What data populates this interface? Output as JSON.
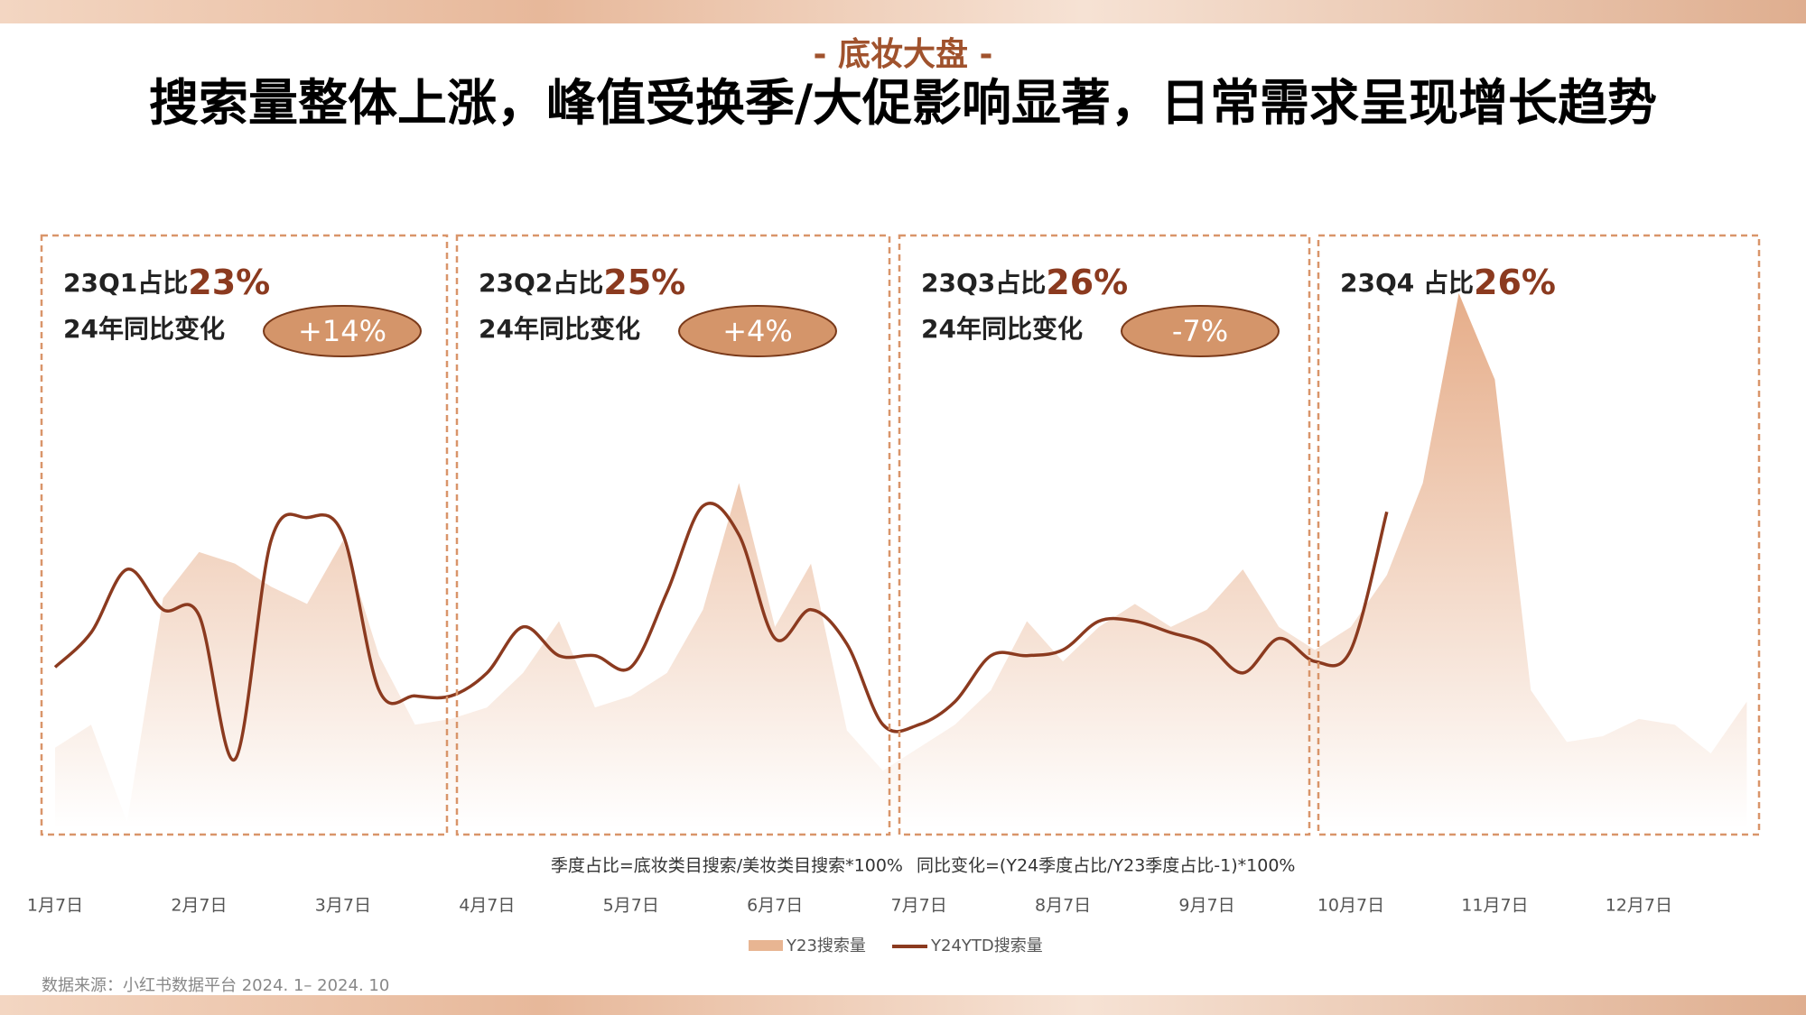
{
  "header": {
    "subtitle": "- 底妆大盘 -",
    "title": "搜索量整体上涨，峰值受换季/大促影响显著，日常需求呈现增长趋势"
  },
  "chart_data": {
    "type": "area-line",
    "categories": [
      "1月7日",
      null,
      null,
      null,
      "2月7日",
      null,
      null,
      null,
      "3月7日",
      null,
      null,
      null,
      "4月7日",
      null,
      null,
      null,
      "5月7日",
      null,
      null,
      null,
      "6月7日",
      null,
      null,
      null,
      "7月7日",
      null,
      null,
      null,
      "8月7日",
      null,
      null,
      null,
      "9月7日",
      null,
      null,
      null,
      "10月7日",
      null,
      null,
      null,
      "11月7日",
      null,
      null,
      null,
      "12月7日",
      null,
      null,
      null
    ],
    "series": [
      {
        "name": "Y23搜索量",
        "color": "#e8b592",
        "values": [
          14,
          18,
          1,
          40,
          48,
          46,
          42,
          39,
          50,
          30,
          18,
          19,
          21,
          27,
          36,
          21,
          23,
          27,
          38,
          60,
          35,
          46,
          17,
          10,
          14,
          18,
          24,
          36,
          29,
          35,
          39,
          35,
          38,
          45,
          35,
          31,
          35,
          44,
          60,
          93,
          78,
          24,
          15,
          16,
          19,
          18,
          13,
          22
        ]
      },
      {
        "name": "Y24YTD搜索量",
        "color": "#8b3a1f",
        "values": [
          28,
          34,
          45,
          38,
          37,
          12,
          50,
          54,
          51,
          24,
          23,
          23,
          27,
          35,
          30,
          30,
          28,
          41,
          56,
          51,
          33,
          38,
          32,
          18,
          18,
          22,
          30,
          30,
          31,
          36,
          36,
          34,
          32,
          27,
          33,
          29,
          31,
          55,
          null,
          null,
          null,
          null,
          null,
          null,
          null,
          null,
          null,
          null
        ]
      }
    ],
    "panels": [
      {
        "share_label": "23Q1占比",
        "share": "23%",
        "yoy_label": "24年同比变化",
        "yoy": "+14%"
      },
      {
        "share_label": "23Q2占比",
        "share": "25%",
        "yoy_label": "24年同比变化",
        "yoy": "+4%"
      },
      {
        "share_label": "23Q3占比",
        "share": "26%",
        "yoy_label": "24年同比变化",
        "yoy": "-7%"
      },
      {
        "share_label": "23Q4 占比",
        "share": "26%"
      }
    ],
    "notes": [
      "季度占比=底妆类目搜索/美妆类目搜索*100%",
      "同比变化=(Y24季度占比/Y23季度占比-1)*100%"
    ]
  },
  "source": "数据来源：小红书数据平台 2024. 1– 2024. 10"
}
